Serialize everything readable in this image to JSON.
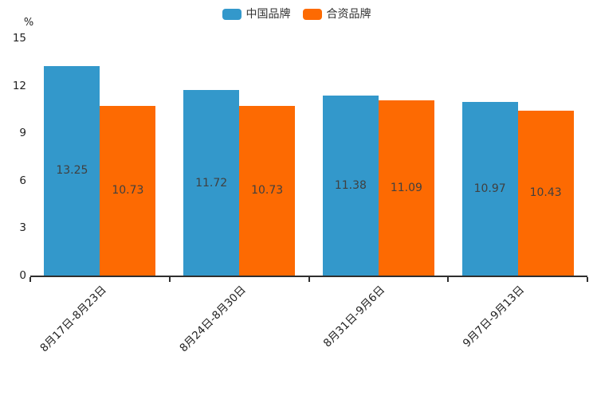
{
  "chart_data": {
    "type": "bar",
    "title": "",
    "categories": [
      "8月17日-8月23日",
      "8月24日-8月30日",
      "8月31日-9月6日",
      "9月7日-9月13日"
    ],
    "series": [
      {
        "name": "中国品牌",
        "color": "#3398cb",
        "values": [
          13.25,
          11.72,
          11.38,
          10.97
        ]
      },
      {
        "name": "合资品牌",
        "color": "#fd6a02",
        "values": [
          10.73,
          10.73,
          11.09,
          10.43
        ]
      }
    ],
    "xlabel": "",
    "ylabel": "%",
    "ylim": [
      0,
      15
    ],
    "yticks": [
      0,
      3,
      6,
      9,
      12,
      15
    ],
    "grid": false,
    "legend_position": "top-center",
    "value_labels": "inside-center",
    "value_label_color": "#404040",
    "axis_color": "#2f2f2f",
    "xtick_rotation": 45
  }
}
